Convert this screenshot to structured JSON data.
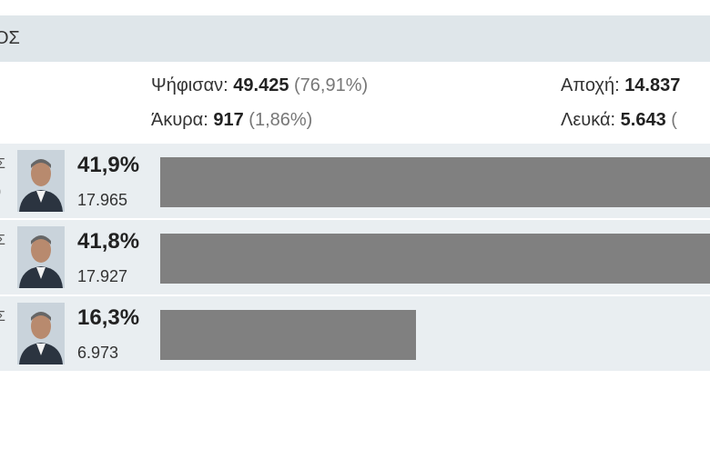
{
  "header": {
    "title": "ΟΣ"
  },
  "stats": [
    {
      "label": "Ψήφισαν:",
      "value": "49.425",
      "percent": "(76,91%)"
    },
    {
      "label": "Αποχή:",
      "value": "14.837"
    },
    {
      "label": "Άκυρα:",
      "value": "917",
      "percent": "(1,86%)"
    },
    {
      "label": "Λευκά:",
      "value": "5.643",
      "percent": "("
    }
  ],
  "candidates": {
    "side_text": [
      "Σ\n)",
      "Σ",
      "Σ"
    ],
    "values": [
      41.9,
      41.8,
      16.3
    ],
    "value_labels": [
      "41,9%",
      "41,8%",
      "16,3%"
    ],
    "votes": [
      "17.965",
      "17.927",
      "6.973"
    ],
    "color": "#808080"
  }
}
